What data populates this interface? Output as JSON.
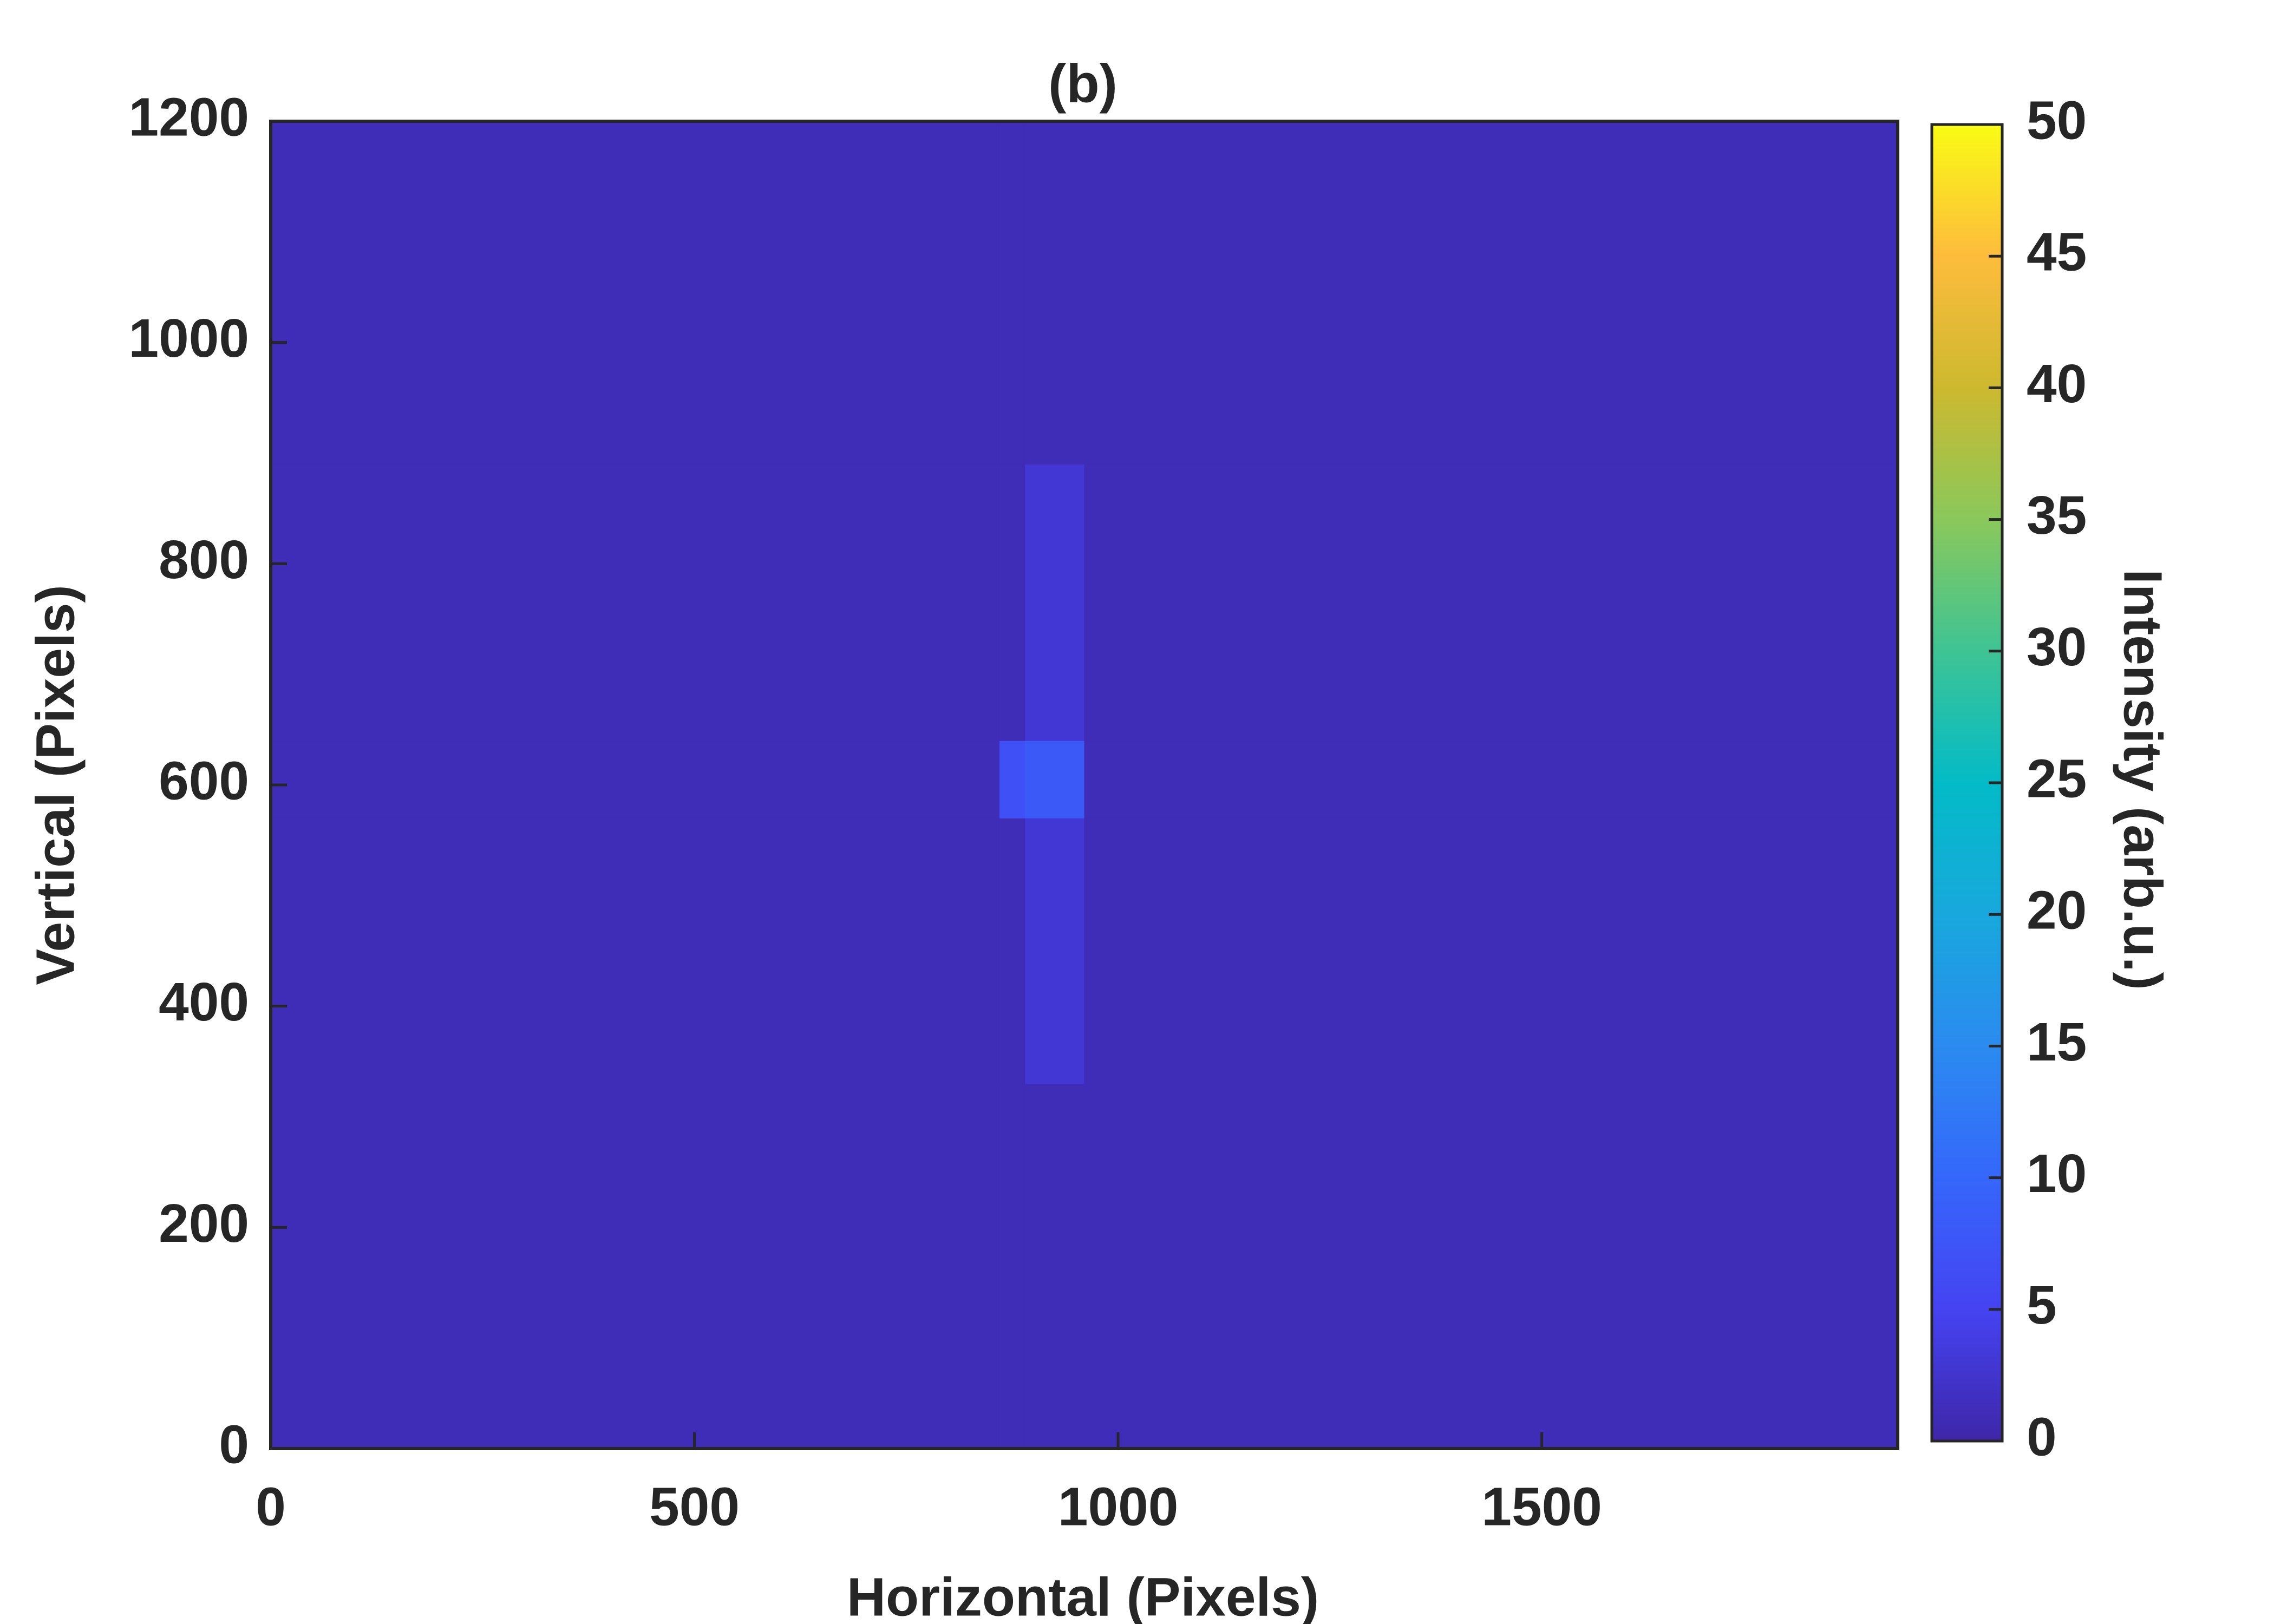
{
  "chart_data": {
    "type": "heatmap",
    "title": "(b)",
    "x_label": "Horizontal (Pixels)",
    "y_label": "Vertical (Pixels)",
    "colorbar_label": "Intensity (arb.u.)",
    "xlim": [
      0,
      1920
    ],
    "xticks": [
      0,
      500,
      1000,
      1500
    ],
    "ylim": [
      0,
      1200
    ],
    "yticks": [
      0,
      200,
      400,
      600,
      800,
      1000,
      1200
    ],
    "clim": [
      0,
      50
    ],
    "cticks": [
      0,
      5,
      10,
      15,
      20,
      25,
      30,
      35,
      40,
      45,
      50
    ],
    "colormap": "parula",
    "x_edges": [
      0,
      860,
      890,
      960,
      1920
    ],
    "y_edges": [
      0,
      330,
      570,
      640,
      890,
      1200
    ],
    "z": [
      [
        1,
        1,
        1,
        1
      ],
      [
        1,
        1,
        3,
        1
      ],
      [
        1,
        7,
        8,
        1
      ],
      [
        1,
        1,
        3,
        1
      ],
      [
        1,
        1,
        1,
        1
      ]
    ]
  }
}
